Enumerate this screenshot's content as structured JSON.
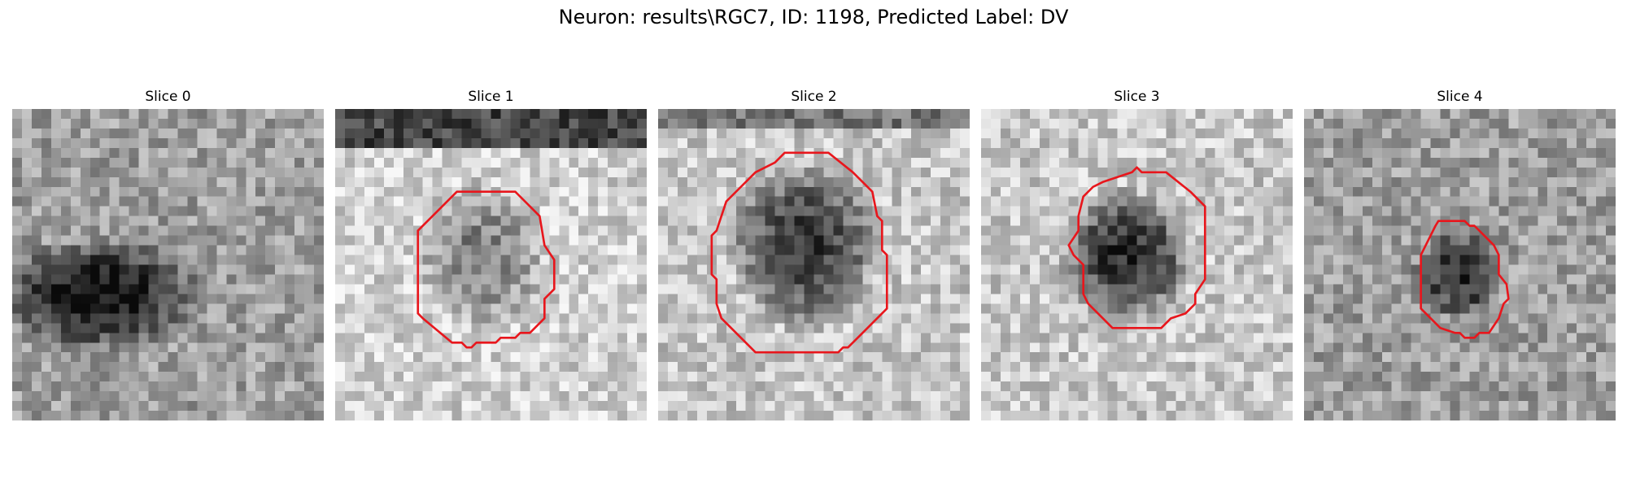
{
  "figure": {
    "title": "Neuron: results\\RGC7, ID: 1198, Predicted Label: DV",
    "contour_color": "#e8161c"
  },
  "slices": [
    {
      "title": "Slice 0",
      "has_contour": false
    },
    {
      "title": "Slice 1",
      "has_contour": true
    },
    {
      "title": "Slice 2",
      "has_contour": true
    },
    {
      "title": "Slice 3",
      "has_contour": true
    },
    {
      "title": "Slice 4",
      "has_contour": true
    }
  ]
}
